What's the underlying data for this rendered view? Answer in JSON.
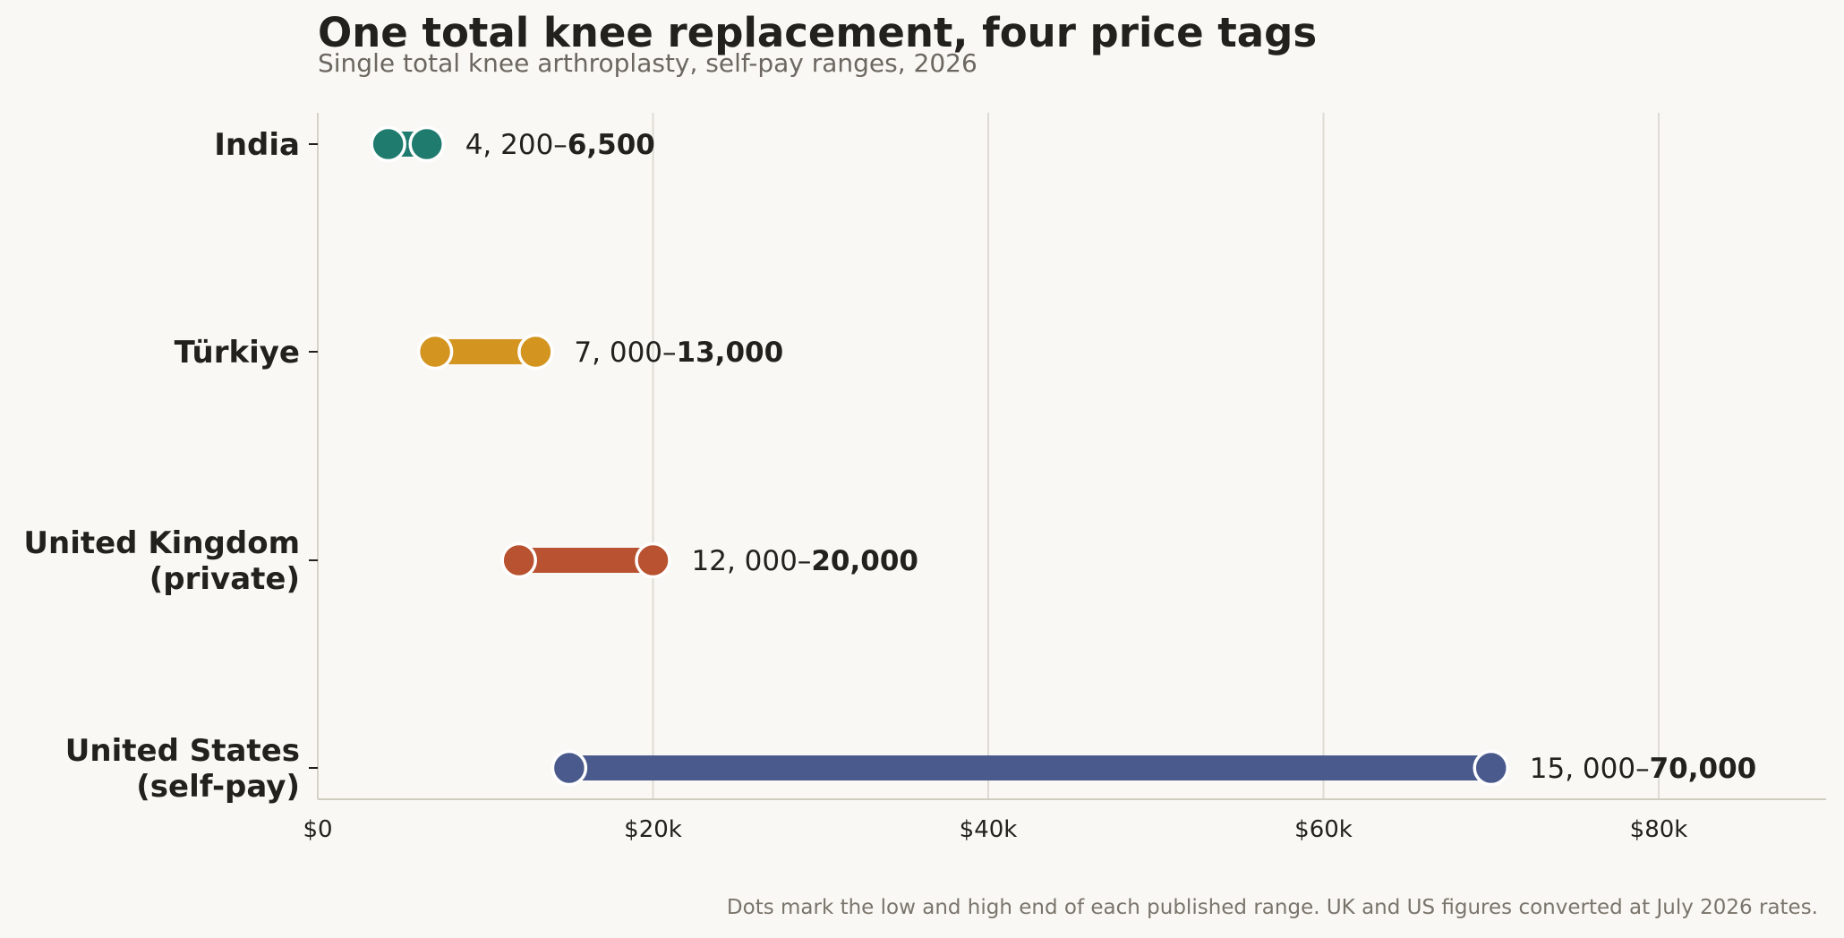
{
  "title": "One total knee replacement, four price tags",
  "subtitle": "Single total knee arthroplasty, self-pay ranges, 2026",
  "footnote": "Dots mark the low and high end of each published range. UK and US figures converted at July 2026 rates.",
  "chart_data": {
    "type": "dumbbell",
    "title": "One total knee replacement, four price tags",
    "subtitle": "Single total knee arthroplasty, self-pay ranges, 2026",
    "xlabel": "",
    "ylabel": "",
    "xlim": [
      0,
      90000
    ],
    "x_ticks": [
      0,
      20000,
      40000,
      60000,
      80000
    ],
    "x_tick_labels": [
      "$0",
      "$20k",
      "$40k",
      "$60k",
      "$80k"
    ],
    "grid": "vertical",
    "legend": "none",
    "series": [
      {
        "label_lines": [
          "India"
        ],
        "low": 4200,
        "high": 6500,
        "color": "#1e7b6e",
        "range_low_text": "4, 200–",
        "range_high_text": "6,500"
      },
      {
        "label_lines": [
          "Türkiye"
        ],
        "low": 7000,
        "high": 13000,
        "color": "#d39420",
        "range_low_text": "7, 000–",
        "range_high_text": "13,000"
      },
      {
        "label_lines": [
          "United Kingdom",
          "(private)"
        ],
        "low": 12000,
        "high": 20000,
        "color": "#b85230",
        "range_low_text": "12, 000–",
        "range_high_text": "20,000"
      },
      {
        "label_lines": [
          "United States",
          "(self-pay)"
        ],
        "low": 15000,
        "high": 70000,
        "color": "#4a5a8c",
        "range_low_text": "15, 000–",
        "range_high_text": "70,000"
      }
    ]
  }
}
